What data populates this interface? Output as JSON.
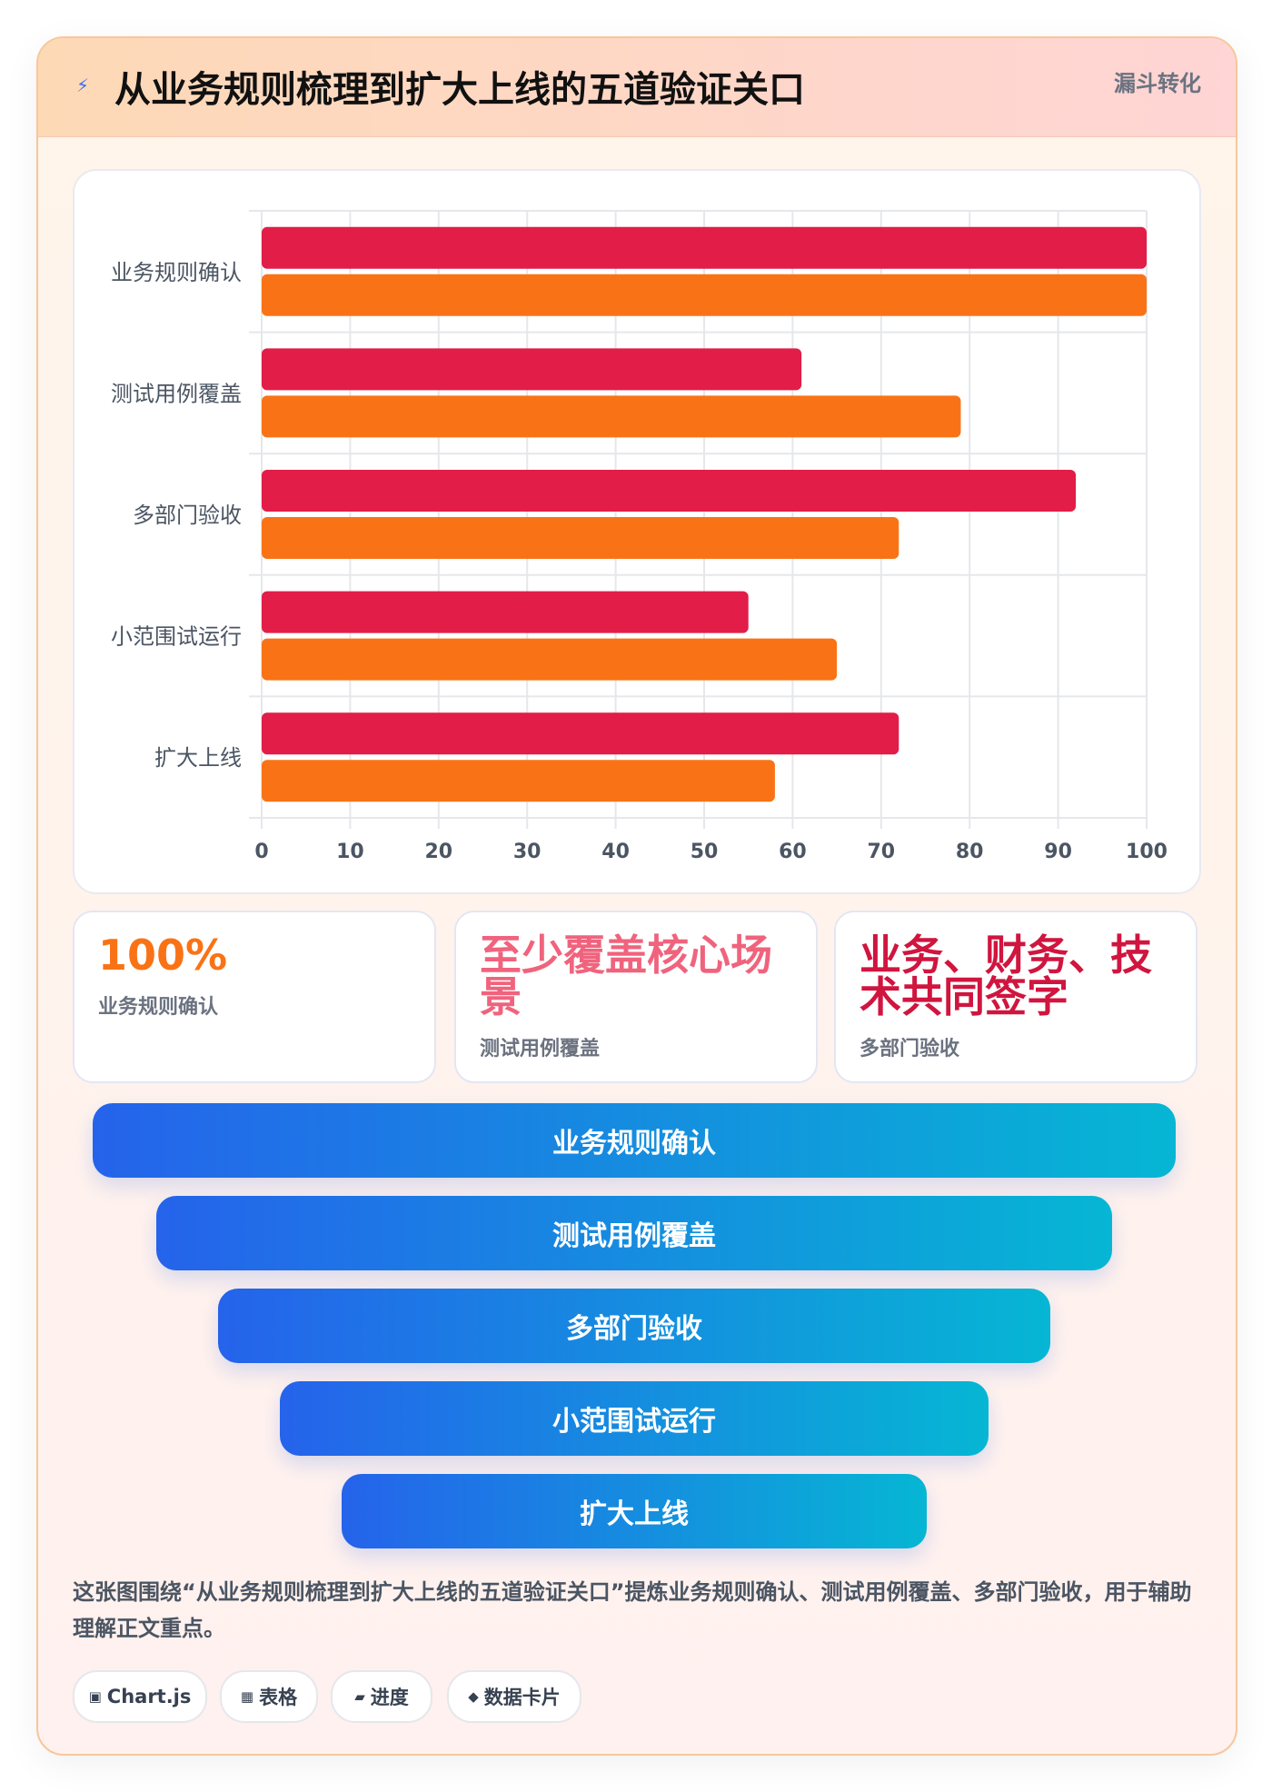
{
  "header": {
    "title": "从业务规则梳理到扩大上线的五道验证关口",
    "tag": "漏斗转化",
    "icon": "lightning-icon"
  },
  "chart_data": {
    "type": "bar",
    "orientation": "horizontal",
    "categories": [
      "业务规则确认",
      "测试用例覆盖",
      "多部门验收",
      "小范围试运行",
      "扩大上线"
    ],
    "series": [
      {
        "color": "#e11d48",
        "values": [
          100,
          61,
          92,
          55,
          72
        ]
      },
      {
        "color": "#f97316",
        "values": [
          100,
          79,
          72,
          65,
          58
        ]
      }
    ],
    "xlim": [
      0,
      100
    ],
    "xticks": [
      0,
      10,
      20,
      30,
      40,
      50,
      60,
      70,
      80,
      90,
      100
    ],
    "grid": true,
    "legend": "none"
  },
  "kpis": [
    {
      "value": "100%",
      "label": "业务规则确认",
      "color": "#f97316"
    },
    {
      "value": "至少覆盖核心场景",
      "label": "测试用例覆盖",
      "color": "#f0637d"
    },
    {
      "value": "业务、财务、技术共同签字",
      "label": "多部门验收",
      "color": "#d0153f"
    }
  ],
  "funnel": [
    "业务规则确认",
    "测试用例覆盖",
    "多部门验收",
    "小范围试运行",
    "扩大上线"
  ],
  "description": "这张图围绕“从业务规则梳理到扩大上线的五道验证关口”提炼业务规则确认、测试用例覆盖、多部门验收，用于辅助理解正文重点。",
  "pills": [
    {
      "icon": "chart-icon",
      "glyph": "▣",
      "label": "Chart.js"
    },
    {
      "icon": "table-icon",
      "glyph": "▦",
      "label": "表格"
    },
    {
      "icon": "progress-icon",
      "glyph": "▰",
      "label": "进度"
    },
    {
      "icon": "data-card-icon",
      "glyph": "◆",
      "label": "数据卡片"
    }
  ]
}
